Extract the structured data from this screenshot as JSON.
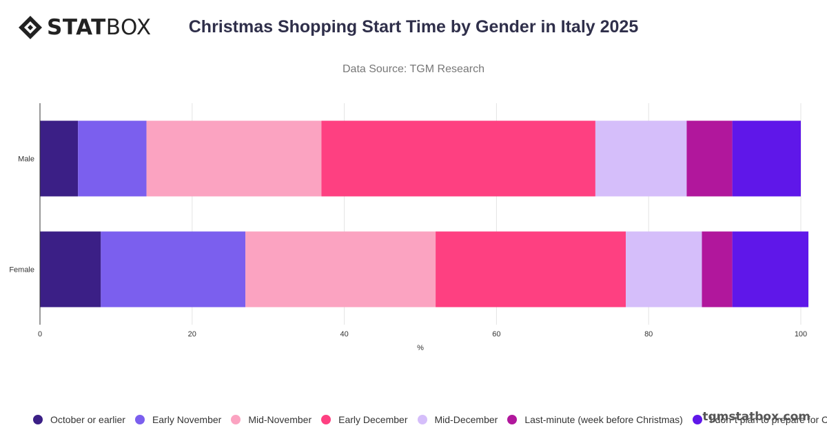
{
  "brand": {
    "logo_bold": "STAT",
    "logo_light": "BOX",
    "watermark": "tgmstatbox.com"
  },
  "header": {
    "title": "Christmas Shopping Start Time by Gender in Italy 2025",
    "subtitle": "Data Source: TGM Research"
  },
  "chart_data": {
    "type": "bar",
    "orientation": "horizontal",
    "stacked": true,
    "title": "Christmas Shopping Start Time by Gender in Italy 2025",
    "subtitle": "Data Source: TGM Research",
    "xlabel": "%",
    "ylabel": "",
    "categories": [
      "Male",
      "Female"
    ],
    "xlim": [
      0,
      100
    ],
    "xticks": [
      0,
      20,
      40,
      60,
      80,
      100
    ],
    "grid": true,
    "legend_position": "bottom",
    "series": [
      {
        "name": "October or earlier",
        "color": "#3b1f86",
        "values": [
          5,
          8
        ]
      },
      {
        "name": "Early November",
        "color": "#7b5fee",
        "values": [
          9,
          19
        ]
      },
      {
        "name": "Mid-November",
        "color": "#fba3c1",
        "values": [
          23,
          25
        ]
      },
      {
        "name": "Early December",
        "color": "#fe4081",
        "values": [
          36,
          25
        ]
      },
      {
        "name": "Mid-December",
        "color": "#d5befa",
        "values": [
          12,
          10
        ]
      },
      {
        "name": "Last-minute (week before Christmas)",
        "color": "#b1179c",
        "values": [
          6,
          4
        ]
      },
      {
        "name": "I don\"t plan to prepare for Christmas",
        "color": "#5f17e9",
        "values": [
          9,
          10
        ]
      }
    ]
  }
}
